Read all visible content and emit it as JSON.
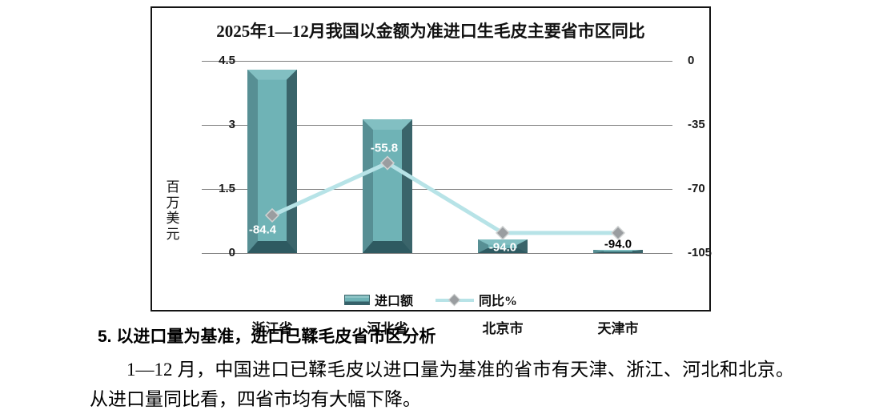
{
  "chart": {
    "title": "2025年1—12月我国以金额为准进口生毛皮主要省市区同比",
    "y_left_label": "百万美元",
    "legend": [
      {
        "label": "进口额",
        "type": "bar"
      },
      {
        "label": "同比%",
        "type": "line"
      }
    ]
  },
  "chart_data": {
    "type": "bar+line",
    "title": "2025年1—12月我国以金额为准进口生毛皮主要省市区同比",
    "categories": [
      "浙江省",
      "河北省",
      "北京市",
      "天津市"
    ],
    "series": [
      {
        "name": "进口额",
        "type": "bar",
        "axis": "left",
        "values": [
          4.3,
          3.13,
          0.32,
          0.08
        ]
      },
      {
        "name": "同比%",
        "type": "line",
        "axis": "right",
        "values": [
          -84.4,
          -55.8,
          -94.0,
          -94.0
        ],
        "labels": [
          "-84.4",
          "-55.8",
          "-94.0",
          "-94.0"
        ],
        "label_colors": [
          "#ffffff",
          "#ffffff",
          "#ffffff",
          "#000000"
        ]
      }
    ],
    "ylabel_left": "百万美元",
    "axis_left": {
      "ticks": [
        "4.5",
        "3",
        "1.5",
        "0"
      ],
      "max": 4.5,
      "min": 0
    },
    "axis_right": {
      "ticks": [
        "0",
        "-35",
        "-70",
        "-105"
      ],
      "max": 0,
      "min": -105
    },
    "grid": true,
    "legend_position": "bottom",
    "colors": {
      "bar_face": "#6fb3b6",
      "bar_edge_light": "#578f94",
      "bar_edge_dark": "#3a646a",
      "line": "#b7e3e7",
      "marker": "#9a9da0"
    }
  },
  "section": {
    "heading": "5. 以进口量为基准，进口已鞣毛皮省市区分析",
    "body": "1—12 月，中国进口已鞣毛皮以进口量为基准的省市有天津、浙江、河北和北京。从进口量同比看，四省市均有大幅下降。"
  }
}
